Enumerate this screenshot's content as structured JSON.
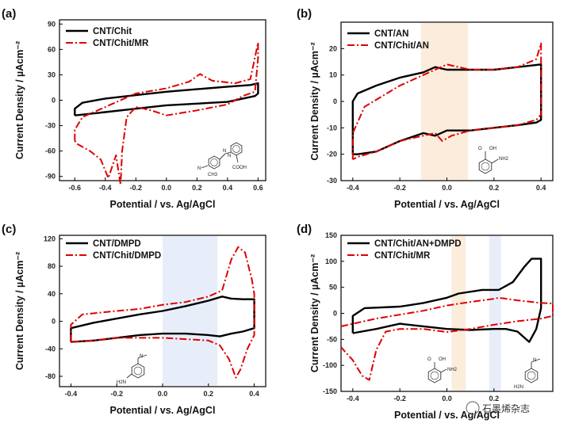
{
  "chart_data": [
    {
      "type": "line",
      "panel_label": "(a)",
      "xlabel": "Potential / vs. Ag/AgCl",
      "ylabel": "Current Density / µAcm⁻²",
      "xlim": [
        -0.7,
        0.65
      ],
      "ylim": [
        -95,
        95
      ],
      "xticks": [
        -0.6,
        -0.4,
        -0.2,
        0.0,
        0.2,
        0.4,
        0.6
      ],
      "xticklabels": [
        "-0.6",
        "-0.4",
        "-0.2",
        "0.0",
        "0.2",
        "0.4",
        "0.6"
      ],
      "yticks": [
        90,
        60,
        30,
        0,
        -30,
        -60,
        -90
      ],
      "yticklabels": [
        "90",
        "60",
        "30",
        "0",
        "-30",
        "-60",
        "-90"
      ],
      "legend_position": "top-left",
      "highlight_bands": [],
      "series": [
        {
          "name": "CNT/Chit",
          "color": "#000000",
          "style": "solid",
          "x": [
            -0.6,
            -0.6,
            -0.55,
            -0.4,
            -0.2,
            0.0,
            0.2,
            0.4,
            0.55,
            0.6,
            0.6,
            0.58,
            0.4,
            0.2,
            0.0,
            -0.2,
            -0.4,
            -0.6
          ],
          "y": [
            -18,
            -10,
            -3,
            2,
            6,
            10,
            13,
            16,
            18,
            20,
            8,
            5,
            -2,
            -4,
            -6,
            -10,
            -14,
            -18
          ]
        },
        {
          "name": "CNT/Chit/MR",
          "color": "#dd0000",
          "style": "dashdot",
          "x": [
            -0.6,
            -0.6,
            -0.55,
            -0.4,
            -0.2,
            0.0,
            0.15,
            0.22,
            0.3,
            0.45,
            0.55,
            0.6,
            0.6,
            0.58,
            0.5,
            0.4,
            0.2,
            0.0,
            -0.1,
            -0.2,
            -0.26,
            -0.29,
            -0.3,
            -0.33,
            -0.38,
            -0.43,
            -0.5,
            -0.58,
            -0.6
          ],
          "y": [
            -48,
            -35,
            -20,
            -8,
            8,
            14,
            22,
            31,
            23,
            20,
            25,
            68,
            50,
            10,
            5,
            -5,
            -12,
            -18,
            -12,
            -8,
            -20,
            -60,
            -100,
            -65,
            -92,
            -70,
            -60,
            -52,
            -48
          ]
        }
      ],
      "inset": {
        "molecule": "methyl red",
        "labels": [
          "COOH",
          "N",
          "N",
          "N",
          "CH3"
        ]
      }
    },
    {
      "type": "line",
      "panel_label": "(b)",
      "xlabel": "Potential / vs. Ag/AgCl",
      "ylabel": "Current Density / µAcm⁻²",
      "xlim": [
        -0.45,
        0.45
      ],
      "ylim": [
        -30,
        30
      ],
      "xticks": [
        -0.4,
        -0.2,
        0.0,
        0.2,
        0.4
      ],
      "xticklabels": [
        "-0.4",
        "-0.2",
        "0.0",
        "0.2",
        "0.4"
      ],
      "yticks": [
        20,
        10,
        0,
        -10,
        -20,
        -30
      ],
      "yticklabels": [
        "20",
        "10",
        "0",
        "-10",
        "-20",
        "-30"
      ],
      "legend_position": "top-left",
      "highlight_bands": [
        {
          "x0": -0.11,
          "x1": 0.09,
          "color": "#fbe9d6"
        }
      ],
      "series": [
        {
          "name": "CNT/AN",
          "color": "#000000",
          "style": "solid",
          "x": [
            -0.4,
            -0.4,
            -0.38,
            -0.3,
            -0.2,
            -0.1,
            -0.05,
            0.0,
            0.1,
            0.2,
            0.3,
            0.4,
            0.4,
            0.38,
            0.3,
            0.2,
            0.1,
            0.0,
            -0.05,
            -0.1,
            -0.2,
            -0.3,
            -0.38,
            -0.4
          ],
          "y": [
            -20,
            0,
            3,
            6,
            9,
            11,
            13,
            12,
            12,
            12,
            13,
            14,
            -7,
            -8,
            -9,
            -10,
            -11,
            -11,
            -13,
            -12,
            -15,
            -19,
            -20,
            -20
          ]
        },
        {
          "name": "CNT/Chit/AN",
          "color": "#dd0000",
          "style": "dashdot",
          "x": [
            -0.4,
            -0.4,
            -0.35,
            -0.2,
            -0.1,
            0.0,
            0.1,
            0.2,
            0.3,
            0.38,
            0.4,
            0.4,
            0.38,
            0.3,
            0.2,
            0.1,
            0.02,
            -0.02,
            -0.05,
            -0.1,
            -0.2,
            -0.3,
            -0.38,
            -0.4
          ],
          "y": [
            -22,
            -12,
            -2,
            6,
            10,
            14,
            12,
            12,
            13,
            16,
            22,
            -5,
            -7,
            -9,
            -10,
            -11,
            -13,
            -15,
            -12,
            -13,
            -15,
            -19,
            -21,
            -22
          ]
        }
      ],
      "inset": {
        "molecule": "anthranilic acid",
        "labels": [
          "O",
          "OH",
          "NH2"
        ]
      }
    },
    {
      "type": "line",
      "panel_label": "(c)",
      "xlabel": "Potential / vs. Ag/AgCl",
      "ylabel": "Current Density / µAcm⁻²",
      "xlim": [
        -0.45,
        0.45
      ],
      "ylim": [
        -95,
        125
      ],
      "xticks": [
        -0.4,
        -0.2,
        0.0,
        0.2,
        0.4
      ],
      "xticklabels": [
        "-0.4",
        "-0.2",
        "0.0",
        "0.2",
        "0.4"
      ],
      "yticks": [
        120,
        80,
        40,
        0,
        -40,
        -80
      ],
      "yticklabels": [
        "120",
        "80",
        "40",
        "0",
        "-40",
        "-80"
      ],
      "legend_position": "top-left",
      "highlight_bands": [
        {
          "x0": 0.0,
          "x1": 0.24,
          "color": "#e4ebf8"
        }
      ],
      "series": [
        {
          "name": "CNT/DMPD",
          "color": "#000000",
          "style": "solid",
          "x": [
            -0.4,
            -0.4,
            -0.3,
            -0.2,
            -0.1,
            0.0,
            0.1,
            0.2,
            0.26,
            0.3,
            0.35,
            0.4,
            0.4,
            0.35,
            0.3,
            0.25,
            0.2,
            0.1,
            0.0,
            -0.1,
            -0.2,
            -0.3,
            -0.4
          ],
          "y": [
            -30,
            -10,
            -2,
            4,
            10,
            15,
            22,
            30,
            36,
            33,
            32,
            32,
            -10,
            -15,
            -18,
            -22,
            -20,
            -18,
            -18,
            -20,
            -24,
            -28,
            -30
          ]
        },
        {
          "name": "CNT/Chit/DMPD",
          "color": "#dd0000",
          "style": "dashdot",
          "x": [
            -0.4,
            -0.4,
            -0.35,
            -0.2,
            -0.1,
            0.0,
            0.1,
            0.2,
            0.26,
            0.3,
            0.33,
            0.36,
            0.39,
            0.4,
            0.4,
            0.37,
            0.34,
            0.32,
            0.29,
            0.25,
            0.2,
            0.1,
            0.0,
            -0.1,
            -0.2,
            -0.3,
            -0.4
          ],
          "y": [
            -30,
            -5,
            10,
            15,
            18,
            24,
            28,
            36,
            45,
            90,
            108,
            100,
            60,
            40,
            -20,
            -40,
            -70,
            -82,
            -55,
            -35,
            -28,
            -26,
            -24,
            -24,
            -24,
            -28,
            -30
          ]
        }
      ],
      "inset": {
        "molecule": "N,N-dimethyl-p-phenylenediamine",
        "labels": [
          "H2N",
          "N"
        ]
      }
    },
    {
      "type": "line",
      "panel_label": "(d)",
      "xlabel": "Potential / vs. Ag/AgCl",
      "ylabel": "Current Density / µAcm⁻²",
      "xlim": [
        -0.45,
        0.45
      ],
      "ylim": [
        -150,
        150
      ],
      "xticks": [
        -0.4,
        -0.2,
        0.0,
        0.2
      ],
      "xticklabels": [
        "-0.4",
        "-0.2",
        "0.0",
        "0.2"
      ],
      "yticks": [
        150,
        100,
        50,
        0,
        -50,
        -100,
        -150
      ],
      "yticklabels": [
        "150",
        "100",
        "50",
        "0",
        "-50",
        "-100",
        "-150"
      ],
      "legend_position": "top-left",
      "highlight_bands": [
        {
          "x0": 0.02,
          "x1": 0.08,
          "color": "#fbe9d6"
        },
        {
          "x0": 0.18,
          "x1": 0.23,
          "color": "#e4ebf8"
        }
      ],
      "series": [
        {
          "name": "CNT/Chit/AN+DMPD",
          "color": "#000000",
          "style": "solid",
          "x": [
            -0.4,
            -0.4,
            -0.35,
            -0.2,
            -0.1,
            0.0,
            0.05,
            0.15,
            0.22,
            0.28,
            0.33,
            0.36,
            0.4,
            0.4,
            0.38,
            0.35,
            0.3,
            0.25,
            0.2,
            0.1,
            0.0,
            -0.1,
            -0.2,
            -0.3,
            -0.4
          ],
          "y": [
            -38,
            -5,
            10,
            13,
            20,
            30,
            38,
            45,
            45,
            60,
            90,
            105,
            105,
            10,
            -30,
            -55,
            -35,
            -30,
            -30,
            -32,
            -30,
            -25,
            -20,
            -30,
            -38
          ]
        },
        {
          "name": "CNT/Chit/MR",
          "color": "#dd0000",
          "style": "dashdot",
          "x": [
            -0.45,
            -0.3,
            -0.1,
            0.0,
            0.1,
            0.2,
            0.22,
            0.3,
            0.4,
            0.45,
            0.45,
            0.4,
            0.3,
            0.2,
            0.1,
            0.0,
            -0.1,
            -0.2,
            -0.26,
            -0.3,
            -0.33,
            -0.36,
            -0.4,
            -0.45
          ],
          "y": [
            -25,
            -10,
            5,
            15,
            22,
            28,
            30,
            25,
            20,
            19,
            -5,
            -10,
            -15,
            -22,
            -30,
            -36,
            -30,
            -30,
            -35,
            -70,
            -128,
            -120,
            -90,
            -65
          ]
        }
      ],
      "inset": {
        "molecules": [
          "anthranilic acid",
          "N,N-dimethyl-p-phenylenediamine"
        ],
        "labels": [
          "O",
          "OH",
          "NH2",
          "H2N",
          "N"
        ]
      }
    }
  ],
  "watermark": {
    "text": "石墨烯杂志"
  }
}
